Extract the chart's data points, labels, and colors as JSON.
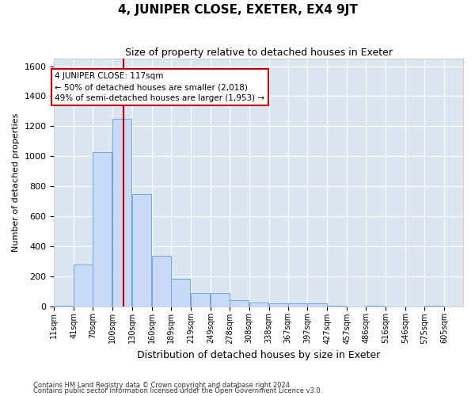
{
  "title": "4, JUNIPER CLOSE, EXETER, EX4 9JT",
  "subtitle": "Size of property relative to detached houses in Exeter",
  "xlabel": "Distribution of detached houses by size in Exeter",
  "ylabel": "Number of detached properties",
  "bar_labels": [
    "11sqm",
    "41sqm",
    "70sqm",
    "100sqm",
    "130sqm",
    "160sqm",
    "189sqm",
    "219sqm",
    "249sqm",
    "278sqm",
    "308sqm",
    "338sqm",
    "367sqm",
    "397sqm",
    "427sqm",
    "457sqm",
    "486sqm",
    "516sqm",
    "546sqm",
    "575sqm",
    "605sqm"
  ],
  "bar_values": [
    5,
    275,
    1030,
    1250,
    750,
    335,
    185,
    85,
    85,
    40,
    25,
    20,
    20,
    20,
    5,
    0,
    5,
    0,
    0,
    5,
    0
  ],
  "bar_color": "#c9daf8",
  "bar_edge_color": "#6fa8dc",
  "ylim": [
    0,
    1650
  ],
  "yticks": [
    0,
    200,
    400,
    600,
    800,
    1000,
    1200,
    1400,
    1600
  ],
  "grid_color": "#ffffff",
  "bg_color": "#dce6f1",
  "property_line_x": 117,
  "annotation_title": "4 JUNIPER CLOSE: 117sqm",
  "annotation_line1": "← 50% of detached houses are smaller (2,018)",
  "annotation_line2": "49% of semi-detached houses are larger (1,953) →",
  "annotation_box_color": "#ffffff",
  "annotation_box_edge": "#cc0000",
  "vline_color": "#cc0000",
  "footer1": "Contains HM Land Registry data © Crown copyright and database right 2024.",
  "footer2": "Contains public sector information licensed under the Open Government Licence v3.0.",
  "bin_starts": [
    11,
    41,
    70,
    100,
    130,
    160,
    189,
    219,
    249,
    278,
    308,
    338,
    367,
    397,
    427,
    457,
    486,
    516,
    546,
    575,
    605
  ],
  "bin_width": 29
}
